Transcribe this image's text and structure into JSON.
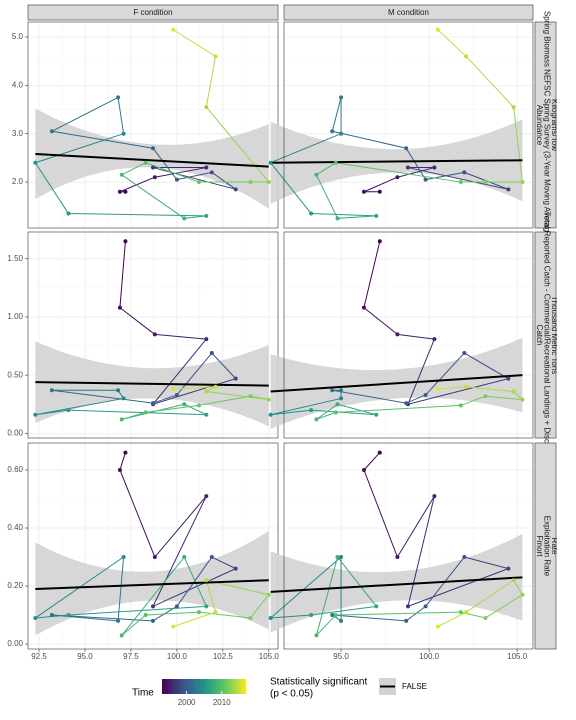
{
  "chart_data": {
    "type": "scatter",
    "years": [
      1993,
      1994,
      1995,
      1996,
      1997,
      1998,
      1999,
      2000,
      2001,
      2002,
      2003,
      2004,
      2005,
      2006,
      2007,
      2008,
      2009,
      2010,
      2011,
      2012,
      2013,
      2014,
      2015,
      2016
    ],
    "colormap": [
      "#440154",
      "#3b528b",
      "#21918c",
      "#5ec962",
      "#fde725"
    ],
    "columns": [
      {
        "name": "F condition",
        "x": [
          97.2,
          96.9,
          98.8,
          101.6,
          98.7,
          103.2,
          101.9,
          100.0,
          98.7,
          93.2,
          96.8,
          97.1,
          92.3,
          94.1,
          101.6,
          100.4,
          97.0,
          98.3,
          101.2,
          104.0,
          105.0,
          101.6,
          102.1,
          99.8
        ],
        "xlim": [
          91.9,
          105.5
        ],
        "xticks": [
          92.5,
          {
            "value": 95,
            "label": "95.0"
          },
          97.5,
          {
            "value": 100,
            "label": "100.0"
          },
          102.5,
          {
            "value": 105,
            "label": "105.0"
          }
        ]
      },
      {
        "name": "M condition",
        "x": [
          97.2,
          96.3,
          98.2,
          100.3,
          98.8,
          104.5,
          102.0,
          99.8,
          98.7,
          94.5,
          95.0,
          95.0,
          91.0,
          93.3,
          97.0,
          94.8,
          93.6,
          94.7,
          101.8,
          103.2,
          105.3,
          104.8,
          102.1,
          100.5
        ],
        "xlim": [
          91.76,
          105.9
        ],
        "xticks": [
          {
            "value": 95,
            "label": "95.0"
          },
          {
            "value": 100,
            "label": "100.0"
          },
          {
            "value": 105,
            "label": "105.0"
          }
        ]
      }
    ],
    "rows": [
      {
        "labels": [
          "Abundance",
          "Spring Biomass NEFSC Spring Survey (3-Year Moving Average)",
          "Kilograms/Tow"
        ],
        "values": [
          1.8,
          1.8,
          2.1,
          2.3,
          2.3,
          1.85,
          2.2,
          2.05,
          2.7,
          3.05,
          3.75,
          3.0,
          2.4,
          1.35,
          1.3,
          1.25,
          2.15,
          2.4,
          2.0,
          2.0,
          2.0,
          3.55,
          4.6,
          5.15
        ],
        "ylim": [
          1.05,
          5.31
        ],
        "yticks": [
          {
            "value": 2,
            "label": "2.0"
          },
          {
            "value": 3,
            "label": "3.0"
          },
          {
            "value": 4,
            "label": "4.0"
          },
          {
            "value": 5,
            "label": "5.0"
          }
        ],
        "fits": [
          {
            "x": [
              92.3,
              105.0
            ],
            "y": [
              2.58,
              2.32
            ],
            "band_x": [
              92.3,
              98.7,
              105.0
            ],
            "band_lo": [
              1.65,
              2.3,
              1.45
            ],
            "band_hi": [
              3.52,
              2.78,
              3.2
            ]
          },
          {
            "x": [
              91.0,
              105.3
            ],
            "y": [
              2.4,
              2.45
            ],
            "band_x": [
              91.0,
              98.2,
              105.3
            ],
            "band_lo": [
              1.55,
              2.2,
              1.6
            ],
            "band_hi": [
              3.25,
              2.68,
              3.3
            ]
          }
        ]
      },
      {
        "labels": [
          "Catch",
          "Total Reported Catch - Commercial/Recreational Landings + Discards",
          "Thousand Metric Tons"
        ],
        "values": [
          1.65,
          1.08,
          0.85,
          0.81,
          0.25,
          0.47,
          0.69,
          0.33,
          0.26,
          0.37,
          0.37,
          0.3,
          0.16,
          0.2,
          0.16,
          0.25,
          0.12,
          0.18,
          0.24,
          0.32,
          0.29,
          0.36,
          0.4,
          0.38
        ],
        "ylim": [
          -0.04,
          1.73
        ],
        "yticks": [
          {
            "value": 0,
            "label": "0.00"
          },
          {
            "value": 0.5,
            "label": "0.50"
          },
          {
            "value": 1,
            "label": "1.00"
          },
          {
            "value": 1.5,
            "label": "1.50"
          }
        ],
        "fits": [
          {
            "x": [
              92.3,
              105.0
            ],
            "y": [
              0.44,
              0.41
            ],
            "band_x": [
              92.3,
              98.7,
              105.0
            ],
            "band_lo": [
              0.09,
              0.3,
              0.06
            ],
            "band_hi": [
              0.79,
              0.56,
              0.76
            ]
          },
          {
            "x": [
              91.0,
              105.3
            ],
            "y": [
              0.36,
              0.5
            ],
            "band_x": [
              91.0,
              98.2,
              105.3
            ],
            "band_lo": [
              0.04,
              0.3,
              0.18
            ],
            "band_hi": [
              0.68,
              0.55,
              0.82
            ]
          }
        ]
      },
      {
        "labels": [
          "Fmort",
          "Exploitation Rate",
          "Rate"
        ],
        "values": [
          0.66,
          0.6,
          0.3,
          0.51,
          0.13,
          0.26,
          0.3,
          0.13,
          0.08,
          0.1,
          0.08,
          0.3,
          0.09,
          0.1,
          0.13,
          0.3,
          0.03,
          0.1,
          0.11,
          0.09,
          0.17,
          0.22,
          0.11,
          0.06
        ],
        "ylim": [
          -0.017,
          0.693
        ],
        "yticks": [
          {
            "value": 0,
            "label": "0.00"
          },
          {
            "value": 0.2,
            "label": "0.20"
          },
          {
            "value": 0.4,
            "label": "0.40"
          },
          {
            "value": 0.6,
            "label": "0.60"
          }
        ],
        "fits": [
          {
            "x": [
              92.3,
              105.0
            ],
            "y": [
              0.19,
              0.22
            ],
            "band_x": [
              92.3,
              98.7,
              105.0
            ],
            "band_lo": [
              0.03,
              0.15,
              0.05
            ],
            "band_hi": [
              0.35,
              0.25,
              0.39
            ]
          },
          {
            "x": [
              91.0,
              105.3
            ],
            "y": [
              0.18,
              0.23
            ],
            "band_x": [
              91.0,
              98.2,
              105.3
            ],
            "band_lo": [
              0.04,
              0.15,
              0.08
            ],
            "band_hi": [
              0.32,
              0.25,
              0.38
            ]
          }
        ]
      }
    ],
    "legend_title": "Time",
    "legend_lim": [
      1993,
      2016.9
    ],
    "legend_ticks": [
      2000,
      2010
    ],
    "sig_title": [
      "Statistically significant",
      "(p < 0.05)"
    ],
    "sig_label": "FALSE",
    "band_color": "#d3d3d3",
    "fit_color": "#000000",
    "grid": true
  }
}
